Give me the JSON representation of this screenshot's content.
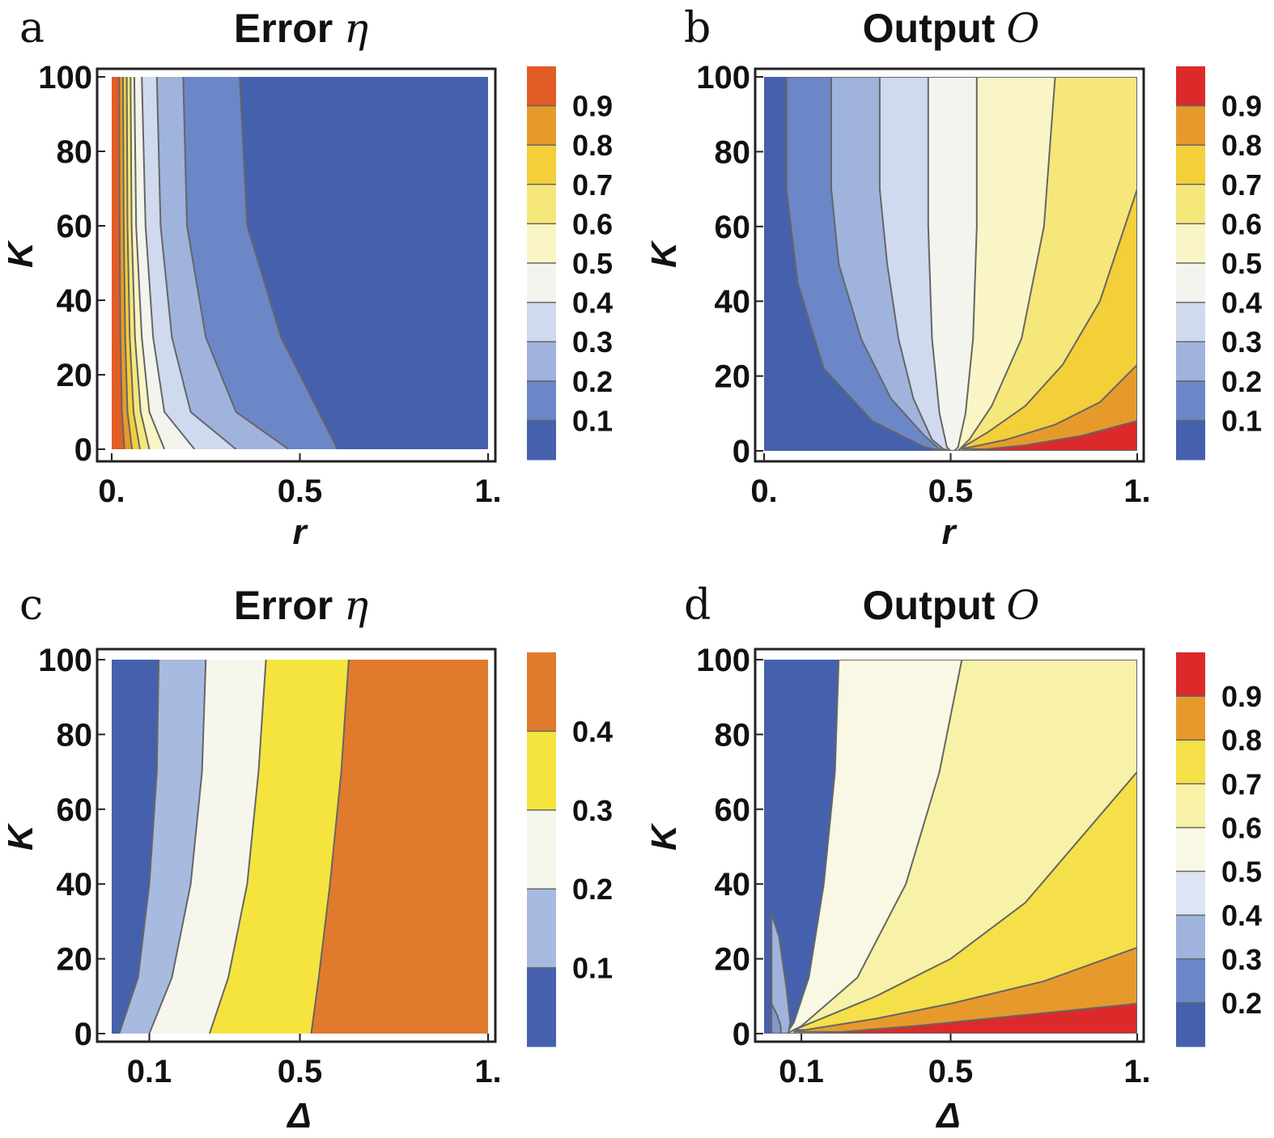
{
  "chart_data": [
    {
      "type": "heatmap",
      "panel": "a",
      "title_text": "Error ",
      "title_var": "η",
      "xlabel": "r",
      "ylabel": "K",
      "xlim": [
        0,
        1
      ],
      "ylim": [
        0,
        100
      ],
      "xticks": [
        {
          "v": 0,
          "t": "0."
        },
        {
          "v": 0.5,
          "t": "0.5"
        },
        {
          "v": 1,
          "t": "1."
        }
      ],
      "yticks": [
        0,
        20,
        40,
        60,
        80,
        100
      ],
      "colorbar": {
        "levels": [
          0.1,
          0.2,
          0.3,
          0.4,
          0.5,
          0.6,
          0.7,
          0.8,
          0.9
        ],
        "colors": [
          "#4560ad",
          "#6b87c8",
          "#9fb3dd",
          "#cfdaee",
          "#f3f4ee",
          "#faf5c6",
          "#f6e77a",
          "#f3cf3a",
          "#e79a2c",
          "#e25c25"
        ]
      },
      "regions": [
        {
          "color": "#4560ad",
          "left": [
            [
              0.34,
              100
            ],
            [
              0.36,
              60
            ],
            [
              0.45,
              30
            ],
            [
              0.6,
              0
            ]
          ],
          "right": "edge"
        },
        {
          "color": "#6b87c8",
          "left": [
            [
              0.19,
              100
            ],
            [
              0.2,
              60
            ],
            [
              0.25,
              30
            ],
            [
              0.33,
              10
            ],
            [
              0.47,
              0
            ]
          ],
          "right": "prev"
        },
        {
          "color": "#9fb3dd",
          "left": [
            [
              0.12,
              100
            ],
            [
              0.13,
              60
            ],
            [
              0.16,
              30
            ],
            [
              0.21,
              10
            ],
            [
              0.33,
              0
            ]
          ],
          "right": "prev"
        },
        {
          "color": "#cfdaee",
          "left": [
            [
              0.08,
              100
            ],
            [
              0.09,
              60
            ],
            [
              0.11,
              30
            ],
            [
              0.14,
              10
            ],
            [
              0.22,
              0
            ]
          ],
          "right": "prev"
        },
        {
          "color": "#f3f4ee",
          "left": [
            [
              0.06,
              100
            ],
            [
              0.065,
              60
            ],
            [
              0.08,
              30
            ],
            [
              0.1,
              10
            ],
            [
              0.14,
              0
            ]
          ],
          "right": "prev"
        },
        {
          "color": "#faf5c6",
          "left": [
            [
              0.05,
              100
            ],
            [
              0.053,
              60
            ],
            [
              0.062,
              30
            ],
            [
              0.077,
              10
            ],
            [
              0.1,
              0
            ]
          ],
          "right": "prev"
        },
        {
          "color": "#f6e77a",
          "left": [
            [
              0.04,
              100
            ],
            [
              0.042,
              60
            ],
            [
              0.048,
              30
            ],
            [
              0.058,
              10
            ],
            [
              0.075,
              0
            ]
          ],
          "right": "prev"
        },
        {
          "color": "#f3cf3a",
          "left": [
            [
              0.03,
              100
            ],
            [
              0.032,
              60
            ],
            [
              0.036,
              30
            ],
            [
              0.042,
              10
            ],
            [
              0.054,
              0
            ]
          ],
          "right": "prev"
        },
        {
          "color": "#e79a2c",
          "left": [
            [
              0.02,
              100
            ],
            [
              0.021,
              60
            ],
            [
              0.023,
              30
            ],
            [
              0.027,
              10
            ],
            [
              0.034,
              0
            ]
          ],
          "right": "prev"
        },
        {
          "color": "#e25c25",
          "left": "edge",
          "right": "prev"
        }
      ]
    },
    {
      "type": "heatmap",
      "panel": "b",
      "title_text": "Output ",
      "title_var": "O",
      "xlabel": "r",
      "ylabel": "K",
      "xlim": [
        0,
        1
      ],
      "ylim": [
        0,
        100
      ],
      "xticks": [
        {
          "v": 0,
          "t": "0."
        },
        {
          "v": 0.5,
          "t": "0.5"
        },
        {
          "v": 1,
          "t": "1."
        }
      ],
      "yticks": [
        0,
        20,
        40,
        60,
        80,
        100
      ],
      "colorbar": {
        "levels": [
          0.1,
          0.2,
          0.3,
          0.4,
          0.5,
          0.6,
          0.7,
          0.8,
          0.9
        ],
        "colors": [
          "#4560ad",
          "#6b87c8",
          "#9fb3dd",
          "#cfdaee",
          "#f3f4ee",
          "#faf5c6",
          "#f6e77a",
          "#f3cf3a",
          "#e79a2c",
          "#dc2a2a"
        ]
      },
      "polygons": [
        {
          "color": "#6b87c8",
          "points": [
            [
              0.06,
              100
            ],
            [
              0.06,
              70
            ],
            [
              0.09,
              45
            ],
            [
              0.16,
              22
            ],
            [
              0.29,
              8
            ],
            [
              0.43,
              1
            ],
            [
              0.48,
              0
            ],
            [
              1,
              0
            ],
            [
              1,
              100
            ]
          ]
        },
        {
          "color": "#9fb3dd",
          "points": [
            [
              0.18,
              100
            ],
            [
              0.18,
              70
            ],
            [
              0.2,
              50
            ],
            [
              0.26,
              30
            ],
            [
              0.34,
              14
            ],
            [
              0.43,
              4
            ],
            [
              0.47,
              0.5
            ],
            [
              0.49,
              0
            ],
            [
              1,
              0
            ],
            [
              1,
              100
            ]
          ]
        },
        {
          "color": "#cfdaee",
          "points": [
            [
              0.31,
              100
            ],
            [
              0.31,
              70
            ],
            [
              0.33,
              50
            ],
            [
              0.36,
              30
            ],
            [
              0.4,
              14
            ],
            [
              0.45,
              3
            ],
            [
              0.48,
              0.5
            ],
            [
              0.5,
              0
            ],
            [
              1,
              0
            ],
            [
              1,
              100
            ]
          ]
        },
        {
          "color": "#f3f4ee",
          "points": [
            [
              0.44,
              100
            ],
            [
              0.44,
              60
            ],
            [
              0.45,
              30
            ],
            [
              0.47,
              10
            ],
            [
              0.49,
              1
            ],
            [
              0.5,
              0
            ],
            [
              1,
              0
            ],
            [
              1,
              100
            ]
          ]
        },
        {
          "color": "#faf5c6",
          "points": [
            [
              0.57,
              100
            ],
            [
              0.57,
              60
            ],
            [
              0.56,
              30
            ],
            [
              0.54,
              10
            ],
            [
              0.52,
              1
            ],
            [
              0.51,
              0
            ],
            [
              1,
              0
            ],
            [
              1,
              100
            ]
          ]
        },
        {
          "color": "#f6e77a",
          "points": [
            [
              0.78,
              100
            ],
            [
              0.75,
              60
            ],
            [
              0.69,
              30
            ],
            [
              0.61,
              12
            ],
            [
              0.55,
              3
            ],
            [
              0.52,
              0
            ],
            [
              1,
              0
            ],
            [
              1,
              100
            ]
          ]
        },
        {
          "color": "#f3cf3a",
          "points": [
            [
              0.53,
              0.8
            ],
            [
              0.6,
              5
            ],
            [
              0.7,
              12
            ],
            [
              0.8,
              23
            ],
            [
              0.9,
              40
            ],
            [
              1,
              70
            ],
            [
              1,
              0
            ]
          ]
        },
        {
          "color": "#e79a2c",
          "points": [
            [
              0.53,
              0.5
            ],
            [
              0.65,
              3
            ],
            [
              0.78,
              7
            ],
            [
              0.9,
              13
            ],
            [
              1,
              23
            ],
            [
              1,
              0
            ]
          ]
        },
        {
          "color": "#dc2a2a",
          "points": [
            [
              0.55,
              0
            ],
            [
              0.7,
              1.5
            ],
            [
              0.85,
              4
            ],
            [
              1,
              8
            ],
            [
              1,
              0
            ]
          ]
        }
      ]
    },
    {
      "type": "heatmap",
      "panel": "c",
      "title_text": "Error ",
      "title_var": "η",
      "xlabel": "Δ",
      "ylabel": "K",
      "xlim": [
        0,
        1
      ],
      "ylim": [
        0,
        100
      ],
      "xticks": [
        {
          "v": 0.1,
          "t": "0.1"
        },
        {
          "v": 0.5,
          "t": "0.5"
        },
        {
          "v": 1,
          "t": "1."
        }
      ],
      "yticks": [
        0,
        20,
        40,
        60,
        80,
        100
      ],
      "colorbar": {
        "levels": [
          0.1,
          0.2,
          0.3,
          0.4
        ],
        "colors": [
          "#4560ad",
          "#a7bae0",
          "#f6f6ec",
          "#f5e43e",
          "#e07b2e"
        ]
      },
      "regions": [
        {
          "color": "#e07b2e",
          "left": [
            [
              0.63,
              100
            ],
            [
              0.61,
              70
            ],
            [
              0.58,
              40
            ],
            [
              0.55,
              15
            ],
            [
              0.53,
              0
            ]
          ],
          "right": "edge"
        },
        {
          "color": "#f5e43e",
          "left": [
            [
              0.41,
              100
            ],
            [
              0.39,
              70
            ],
            [
              0.36,
              40
            ],
            [
              0.31,
              15
            ],
            [
              0.26,
              0
            ]
          ],
          "right": "prev"
        },
        {
          "color": "#f6f6ec",
          "left": [
            [
              0.25,
              100
            ],
            [
              0.24,
              70
            ],
            [
              0.21,
              40
            ],
            [
              0.16,
              15
            ],
            [
              0.1,
              0
            ]
          ],
          "right": "prev"
        },
        {
          "color": "#a7bae0",
          "left": [
            [
              0.125,
              100
            ],
            [
              0.12,
              70
            ],
            [
              0.1,
              40
            ],
            [
              0.07,
              15
            ],
            [
              0.02,
              0
            ]
          ],
          "right": "prev"
        },
        {
          "color": "#4560ad",
          "left": "edge",
          "right": "prev"
        }
      ]
    },
    {
      "type": "heatmap",
      "panel": "d",
      "title_text": "Output ",
      "title_var": "O",
      "xlabel": "Δ",
      "ylabel": "K",
      "xlim": [
        0,
        1
      ],
      "ylim": [
        0,
        100
      ],
      "xticks": [
        {
          "v": 0.1,
          "t": "0.1"
        },
        {
          "v": 0.5,
          "t": "0.5"
        },
        {
          "v": 1,
          "t": "1."
        }
      ],
      "yticks": [
        0,
        20,
        40,
        60,
        80,
        100
      ],
      "colorbar": {
        "levels": [
          0.2,
          0.3,
          0.4,
          0.5,
          0.6,
          0.7,
          0.8,
          0.9
        ],
        "colors": [
          "#4560ad",
          "#6b87c8",
          "#9fb3dd",
          "#dde4f3",
          "#f8f8e4",
          "#f7f2a8",
          "#f5e04a",
          "#e79a2c",
          "#dc2a2a"
        ]
      },
      "polygons": [
        {
          "color": "#f8f8e4",
          "points": [
            [
              0.2,
              100
            ],
            [
              0.19,
              70
            ],
            [
              0.16,
              40
            ],
            [
              0.12,
              15
            ],
            [
              0.08,
              3
            ],
            [
              0.06,
              0
            ],
            [
              1,
              0
            ],
            [
              1,
              100
            ]
          ]
        },
        {
          "color": "#f7f2a8",
          "points": [
            [
              0.53,
              100
            ],
            [
              0.47,
              70
            ],
            [
              0.38,
              40
            ],
            [
              0.25,
              15
            ],
            [
              0.1,
              2
            ],
            [
              0.06,
              0
            ],
            [
              1,
              0
            ],
            [
              1,
              100
            ]
          ]
        },
        {
          "color": "#f5e04a",
          "points": [
            [
              0.08,
              1
            ],
            [
              0.3,
              10
            ],
            [
              0.5,
              20
            ],
            [
              0.7,
              35
            ],
            [
              1,
              70
            ],
            [
              1,
              0
            ]
          ]
        },
        {
          "color": "#e79a2c",
          "points": [
            [
              0.08,
              0.5
            ],
            [
              0.3,
              4
            ],
            [
              0.5,
              8
            ],
            [
              0.75,
              14
            ],
            [
              1,
              23
            ],
            [
              1,
              0
            ]
          ]
        },
        {
          "color": "#dc2a2a",
          "points": [
            [
              0.15,
              0
            ],
            [
              0.4,
              2
            ],
            [
              0.7,
              5
            ],
            [
              1,
              8
            ],
            [
              1,
              0
            ]
          ]
        },
        {
          "color": "#9fb3dd",
          "points": [
            [
              0.02,
              32
            ],
            [
              0.04,
              26
            ],
            [
              0.06,
              12
            ],
            [
              0.07,
              3
            ],
            [
              0.065,
              0
            ],
            [
              0.02,
              0
            ]
          ]
        },
        {
          "color": "#7f98cf",
          "points": [
            [
              0.02,
              8
            ],
            [
              0.035,
              5
            ],
            [
              0.045,
              2
            ],
            [
              0.045,
              0
            ],
            [
              0.02,
              0
            ]
          ]
        }
      ]
    }
  ]
}
